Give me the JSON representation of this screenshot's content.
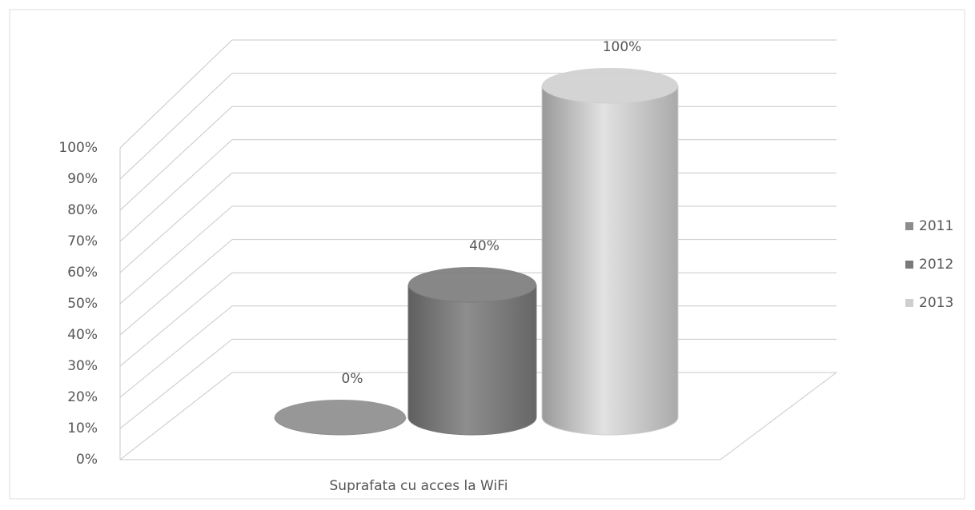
{
  "chart_data": {
    "type": "cylinder",
    "categories": [
      "Suprafata cu acces la WiFi"
    ],
    "series": [
      {
        "name": "2011",
        "color": "#8c8c8c",
        "values": [
          0
        ],
        "value_labels": [
          "0%"
        ]
      },
      {
        "name": "2012",
        "color": "#7a7a7a",
        "values": [
          40
        ],
        "value_labels": [
          "40%"
        ]
      },
      {
        "name": "2013",
        "color": "#cfcfcf",
        "values": [
          100
        ],
        "value_labels": [
          "100%"
        ]
      }
    ],
    "ylim": [
      0,
      100
    ],
    "yticks": [
      {
        "value": 0,
        "label": "0%"
      },
      {
        "value": 10,
        "label": "10%"
      },
      {
        "value": 20,
        "label": "20%"
      },
      {
        "value": 30,
        "label": "30%"
      },
      {
        "value": 40,
        "label": "40%"
      },
      {
        "value": 50,
        "label": "50%"
      },
      {
        "value": 60,
        "label": "60%"
      },
      {
        "value": 70,
        "label": "70%"
      },
      {
        "value": 80,
        "label": "80%"
      },
      {
        "value": 90,
        "label": "90%"
      },
      {
        "value": 100,
        "label": "100%"
      }
    ],
    "grid": true,
    "legend": "right"
  }
}
